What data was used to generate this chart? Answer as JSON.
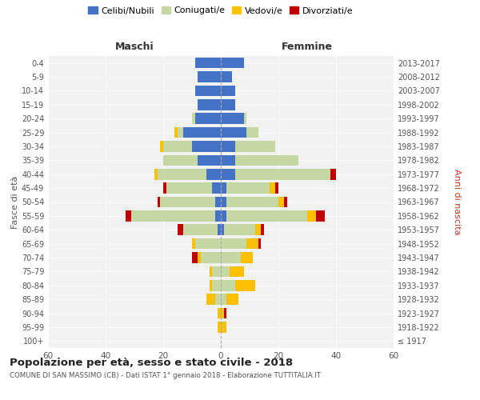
{
  "age_groups": [
    "100+",
    "95-99",
    "90-94",
    "85-89",
    "80-84",
    "75-79",
    "70-74",
    "65-69",
    "60-64",
    "55-59",
    "50-54",
    "45-49",
    "40-44",
    "35-39",
    "30-34",
    "25-29",
    "20-24",
    "15-19",
    "10-14",
    "5-9",
    "0-4"
  ],
  "birth_years": [
    "≤ 1917",
    "1918-1922",
    "1923-1927",
    "1928-1932",
    "1933-1937",
    "1938-1942",
    "1943-1947",
    "1948-1952",
    "1953-1957",
    "1958-1962",
    "1963-1967",
    "1968-1972",
    "1973-1977",
    "1978-1982",
    "1983-1987",
    "1988-1992",
    "1993-1997",
    "1998-2002",
    "2003-2007",
    "2008-2012",
    "2013-2017"
  ],
  "male": {
    "celibi": [
      0,
      0,
      0,
      0,
      0,
      0,
      0,
      0,
      1,
      2,
      2,
      3,
      5,
      8,
      10,
      13,
      9,
      8,
      9,
      8,
      9
    ],
    "coniugati": [
      0,
      0,
      0,
      2,
      3,
      3,
      7,
      9,
      12,
      29,
      19,
      16,
      17,
      12,
      10,
      2,
      1,
      0,
      0,
      0,
      0
    ],
    "vedovi": [
      0,
      1,
      1,
      3,
      1,
      1,
      1,
      1,
      0,
      0,
      0,
      0,
      1,
      0,
      1,
      1,
      0,
      0,
      0,
      0,
      0
    ],
    "divorziati": [
      0,
      0,
      0,
      0,
      0,
      0,
      2,
      0,
      2,
      2,
      1,
      1,
      0,
      0,
      0,
      0,
      0,
      0,
      0,
      0,
      0
    ]
  },
  "female": {
    "nubili": [
      0,
      0,
      0,
      0,
      0,
      0,
      0,
      0,
      1,
      2,
      2,
      2,
      5,
      5,
      5,
      9,
      8,
      5,
      5,
      4,
      8
    ],
    "coniugate": [
      0,
      0,
      0,
      2,
      5,
      3,
      7,
      9,
      11,
      28,
      18,
      15,
      33,
      22,
      14,
      4,
      1,
      0,
      0,
      0,
      0
    ],
    "vedove": [
      0,
      2,
      1,
      4,
      7,
      5,
      4,
      4,
      2,
      3,
      2,
      2,
      0,
      0,
      0,
      0,
      0,
      0,
      0,
      0,
      0
    ],
    "divorziate": [
      0,
      0,
      1,
      0,
      0,
      0,
      0,
      1,
      1,
      3,
      1,
      1,
      2,
      0,
      0,
      0,
      0,
      0,
      0,
      0,
      0
    ]
  },
  "colors": {
    "celibi_nubili": "#4472c4",
    "coniugati_e": "#c5d8a4",
    "vedovi_e": "#ffc000",
    "divorziati_e": "#c00000"
  },
  "xlim": 60,
  "title": "Popolazione per età, sesso e stato civile - 2018",
  "subtitle": "COMUNE DI SAN MASSIMO (CB) - Dati ISTAT 1° gennaio 2018 - Elaborazione TUTTITALIA.IT",
  "ylabel_left": "Fasce di età",
  "ylabel_right": "Anni di nascita",
  "xlabel_left": "Maschi",
  "xlabel_right": "Femmine",
  "legend_labels": [
    "Celibi/Nubili",
    "Coniugati/e",
    "Vedovi/e",
    "Divorziati/e"
  ],
  "bg_color": "#ffffff",
  "grid_color": "#cccccc"
}
